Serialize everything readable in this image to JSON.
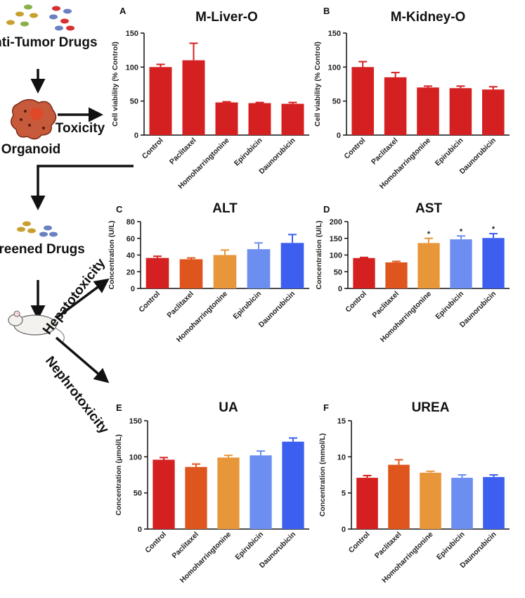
{
  "chart_data": [
    {
      "type": "bar",
      "panel": "A",
      "title": "M-Liver-O",
      "y_label": "Cell viability (% Control)",
      "categories": [
        "Control",
        "Paclitaxel",
        "Homoharringtonine",
        "Epirubicin",
        "Daunorubicin"
      ],
      "values": [
        100,
        110,
        48,
        47,
        46
      ],
      "errors": [
        4,
        25,
        1,
        1,
        2
      ],
      "colors": [
        "#d42020",
        "#d42020",
        "#d42020",
        "#d42020",
        "#d42020"
      ],
      "ylim": [
        0,
        150
      ],
      "yticks": [
        0,
        50,
        100,
        150
      ]
    },
    {
      "type": "bar",
      "panel": "B",
      "title": "M-Kidney-O",
      "y_label": "Cell viability (% Control)",
      "categories": [
        "Control",
        "Paclitaxel",
        "Homoharringtonine",
        "Epirubicin",
        "Daunorubicin"
      ],
      "values": [
        100,
        85,
        70,
        69,
        67
      ],
      "errors": [
        8,
        7,
        2,
        3,
        4
      ],
      "colors": [
        "#d42020",
        "#d42020",
        "#d42020",
        "#d42020",
        "#d42020"
      ],
      "ylim": [
        0,
        150
      ],
      "yticks": [
        0,
        50,
        100,
        150
      ]
    },
    {
      "type": "bar",
      "panel": "C",
      "title": "ALT",
      "y_label": "Concentration (U/L)",
      "categories": [
        "Control",
        "Paclitaxel",
        "Homoharringtonine",
        "Epirubicin",
        "Daunorubicin"
      ],
      "values": [
        36.5,
        35,
        40,
        47,
        54.5
      ],
      "errors": [
        2,
        1.5,
        6,
        7.5,
        10
      ],
      "colors": [
        "#d42020",
        "#de561e",
        "#e8963a",
        "#6b8ef0",
        "#3d5ff0"
      ],
      "ylim": [
        0,
        80
      ],
      "yticks": [
        0,
        20,
        40,
        60,
        80
      ]
    },
    {
      "type": "bar",
      "panel": "D",
      "title": "AST",
      "y_label": "Concentration (U/L)",
      "categories": [
        "Control",
        "Paclitaxel",
        "Homoharringtonine",
        "Epirubicin",
        "Daunorubicin"
      ],
      "values": [
        91,
        78,
        136,
        147,
        151
      ],
      "errors": [
        2,
        3,
        14,
        10,
        13
      ],
      "significance": [
        null,
        null,
        "*",
        "*",
        "*"
      ],
      "colors": [
        "#d42020",
        "#de561e",
        "#e8963a",
        "#6b8ef0",
        "#3d5ff0"
      ],
      "ylim": [
        0,
        200
      ],
      "yticks": [
        0,
        50,
        100,
        150,
        200
      ]
    },
    {
      "type": "bar",
      "panel": "E",
      "title": "UA",
      "y_label": "Concentration (μmol/L)",
      "categories": [
        "Control",
        "Paclitaxel",
        "Homoharringtonine",
        "Epirubicin",
        "Daunorubicin"
      ],
      "values": [
        96,
        86,
        99,
        102,
        121
      ],
      "errors": [
        3,
        4,
        3,
        6,
        5
      ],
      "colors": [
        "#d42020",
        "#de561e",
        "#e8963a",
        "#6b8ef0",
        "#3d5ff0"
      ],
      "ylim": [
        0,
        150
      ],
      "yticks": [
        0,
        50,
        100,
        150
      ]
    },
    {
      "type": "bar",
      "panel": "F",
      "title": "UREA",
      "y_label": "Concentration (mmol/L)",
      "categories": [
        "Control",
        "Paclitaxel",
        "Homoharringtonine",
        "Epirubicin",
        "Daunorubicin"
      ],
      "values": [
        7.1,
        8.9,
        7.8,
        7.1,
        7.2
      ],
      "errors": [
        0.3,
        0.7,
        0.2,
        0.4,
        0.3
      ],
      "colors": [
        "#d42020",
        "#de561e",
        "#e8963a",
        "#6b8ef0",
        "#3d5ff0"
      ],
      "ylim": [
        0,
        15
      ],
      "yticks": [
        0,
        5,
        10,
        15
      ]
    }
  ],
  "diagram": {
    "drugs": "Anti-Tumor Drugs",
    "toxicity": "Toxicity",
    "organoid": "Organoid",
    "screened": "Screened Drugs",
    "hepato": "Hepatotoxicity",
    "nephro": "Nephrotoxicity"
  }
}
